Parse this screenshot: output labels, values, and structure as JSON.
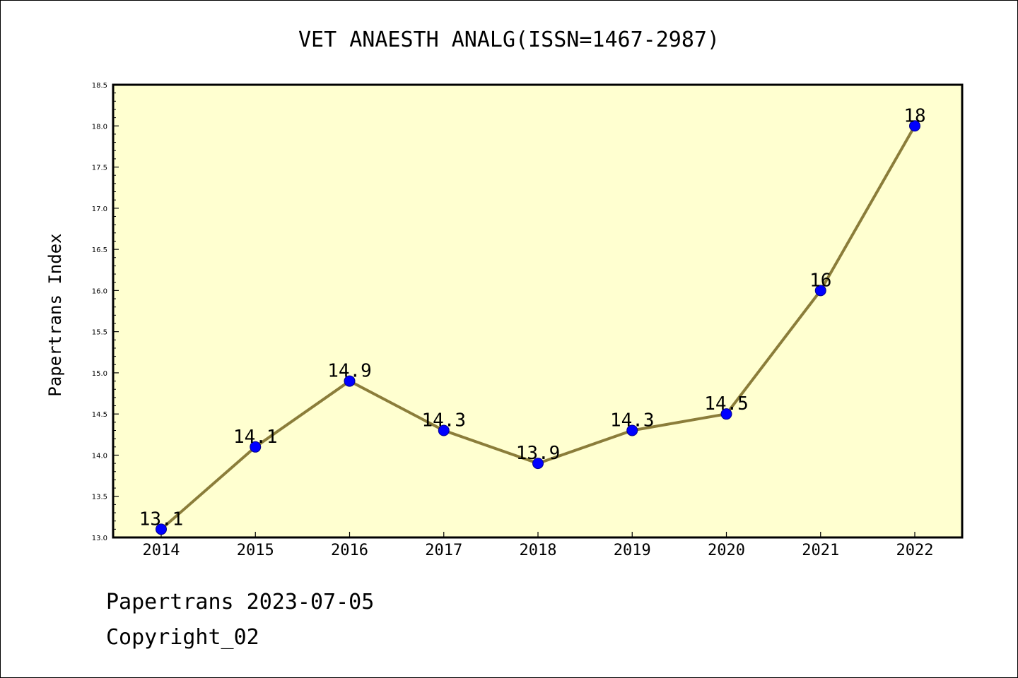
{
  "chart_data": {
    "type": "line",
    "title": "VET ANAESTH ANALG(ISSN=1467-2987)",
    "xlabel": "",
    "ylabel": "Papertrans Index",
    "categories": [
      "2014",
      "2015",
      "2016",
      "2017",
      "2018",
      "2019",
      "2020",
      "2021",
      "2022"
    ],
    "series": [
      {
        "values": [
          13.1,
          14.1,
          14.9,
          14.3,
          13.9,
          14.3,
          14.5,
          16,
          18
        ],
        "data_labels": [
          "13.1",
          "14.1",
          "14.9",
          "14.3",
          "13.9",
          "14.3",
          "14.5",
          "16",
          "18"
        ]
      }
    ],
    "ylim": [
      13.0,
      18.5
    ],
    "yticks": [
      "13.0",
      "13.5",
      "14.0",
      "14.5",
      "15.0",
      "15.5",
      "16.0",
      "16.5",
      "17.0",
      "17.5",
      "18.0",
      "18.5"
    ],
    "grid": false,
    "colors": {
      "plot_background": "#FFFFD0",
      "line": "#8B7D3A",
      "marker_fill": "#0000FF",
      "marker_edge": "#00008B",
      "axes": "#000000"
    }
  },
  "footer": {
    "line1": "Papertrans 2023-07-05",
    "line2": "Copyright_02"
  }
}
